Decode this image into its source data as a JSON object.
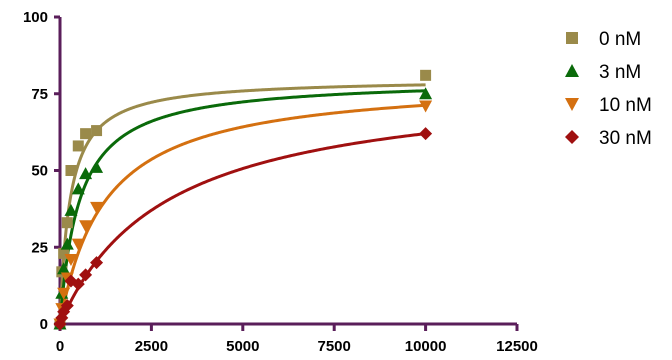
{
  "chart_data": {
    "type": "scatter",
    "title": "",
    "xlabel": "",
    "ylabel": "",
    "xlim": [
      0,
      12500
    ],
    "ylim": [
      0,
      100
    ],
    "x_ticks": [
      0,
      2500,
      5000,
      7500,
      10000,
      12500
    ],
    "x_tick_labels": [
      "0",
      "2500",
      "5000",
      "7500",
      "10000",
      "12500"
    ],
    "y_ticks": [
      0,
      25,
      50,
      75,
      100
    ],
    "y_tick_labels": [
      "0",
      "25",
      "50",
      "75",
      "100"
    ],
    "grid": false,
    "legend_position": "right",
    "axis_color": "#5a1e5a",
    "series": [
      {
        "name": "0 nM",
        "marker": "square",
        "color": "#9a8a4a",
        "points": [
          [
            0,
            0
          ],
          [
            50,
            17
          ],
          [
            100,
            23
          ],
          [
            200,
            33
          ],
          [
            300,
            50
          ],
          [
            500,
            58
          ],
          [
            700,
            62
          ],
          [
            1000,
            63
          ],
          [
            10000,
            81
          ]
        ],
        "fit": {
          "ymax": 80,
          "km": 270
        }
      },
      {
        "name": "3 nM",
        "marker": "triangle-up",
        "color": "#0a6a0a",
        "points": [
          [
            0,
            0
          ],
          [
            50,
            10
          ],
          [
            100,
            18
          ],
          [
            200,
            26
          ],
          [
            300,
            37
          ],
          [
            500,
            44
          ],
          [
            700,
            49
          ],
          [
            1000,
            51
          ],
          [
            10000,
            75
          ]
        ],
        "fit": {
          "ymax": 80,
          "km": 530
        }
      },
      {
        "name": "10 nM",
        "marker": "triangle-down",
        "color": "#d47010",
        "points": [
          [
            0,
            0
          ],
          [
            50,
            5
          ],
          [
            100,
            10
          ],
          [
            200,
            15
          ],
          [
            300,
            21
          ],
          [
            500,
            26
          ],
          [
            700,
            32
          ],
          [
            1000,
            38
          ],
          [
            10000,
            71
          ]
        ],
        "fit": {
          "ymax": 80,
          "km": 1230
        }
      },
      {
        "name": "30 nM",
        "marker": "diamond",
        "color": "#a01010",
        "points": [
          [
            0,
            0
          ],
          [
            50,
            2
          ],
          [
            100,
            4
          ],
          [
            200,
            6
          ],
          [
            300,
            14
          ],
          [
            500,
            13
          ],
          [
            700,
            16
          ],
          [
            1000,
            20
          ],
          [
            10000,
            62
          ]
        ],
        "fit": {
          "ymax": 80,
          "km": 2900
        }
      }
    ]
  }
}
